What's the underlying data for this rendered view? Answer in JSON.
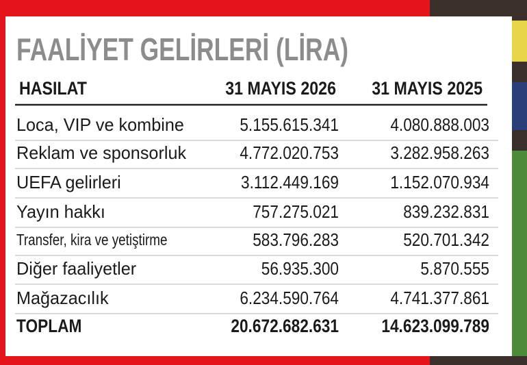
{
  "title": "FAALİYET GELİRLERİ (LİRA)",
  "table": {
    "header": [
      "HASILAT",
      "31 MAYIS 2026",
      "31 MAYIS 2025"
    ],
    "rows": [
      [
        "Loca, VIP ve kombine",
        "5.155.615.341",
        "4.080.888.003"
      ],
      [
        "Reklam ve sponsorluk",
        "4.772.020.753",
        "3.282.958.263"
      ],
      [
        "UEFA gelirleri",
        "3.112.449.169",
        "1.152.070.934"
      ],
      [
        "Yayın hakkı",
        "757.275.021",
        "839.232.831"
      ],
      [
        "Transfer, kira ve yetiştirme",
        "583.796.283",
        "520.701.342"
      ],
      [
        "Diğer faaliyetler",
        "56.935.300",
        "5.870.555"
      ],
      [
        "Mağazacılık",
        "6.234.590.764",
        "4.741.377.861"
      ]
    ],
    "total": [
      "TOPLAM",
      "20.672.682.631",
      "14.623.099.789"
    ]
  }
}
